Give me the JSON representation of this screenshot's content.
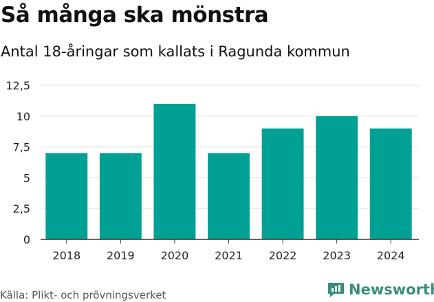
{
  "header": {
    "title": "Så många ska mönstra",
    "subtitle": "Antal 18-åringar som kallats i Ragunda kommun"
  },
  "footer": {
    "source": "Källa: Plikt- och prövningsverket",
    "brand": "Newsworthy"
  },
  "colors": {
    "bar": "#00a094",
    "grid": "#dddddd",
    "axis": "#333333",
    "brand": "#3a8d7c"
  },
  "chart_data": {
    "type": "bar",
    "title": "Så många ska mönstra",
    "subtitle": "Antal 18-åringar som kallats i Ragunda kommun",
    "xlabel": "",
    "ylabel": "",
    "categories": [
      "2018",
      "2019",
      "2020",
      "2021",
      "2022",
      "2023",
      "2024"
    ],
    "values": [
      7,
      7,
      11,
      7,
      9,
      10,
      9
    ],
    "ylim": [
      0,
      12.5
    ],
    "yticks": [
      0,
      2.5,
      5,
      7.5,
      10,
      12.5
    ],
    "ytick_labels": [
      "0",
      "2,5",
      "5",
      "7,5",
      "10",
      "12,5"
    ],
    "grid": true,
    "legend": "none"
  }
}
